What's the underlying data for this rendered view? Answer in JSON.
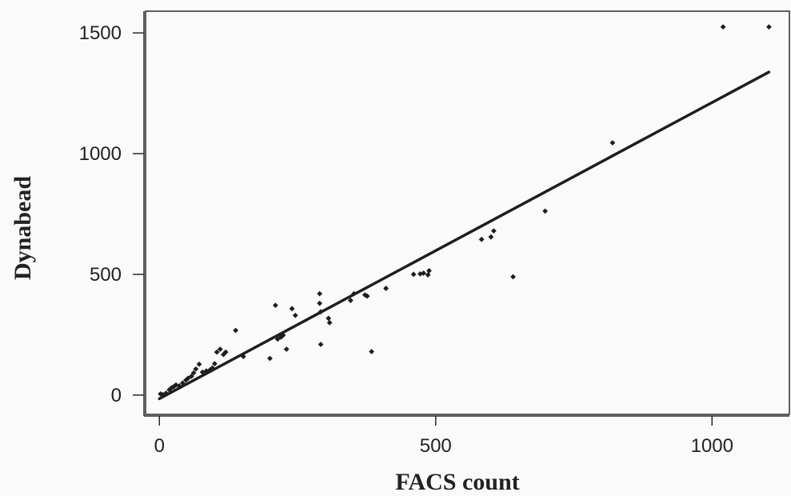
{
  "chart_data": {
    "type": "scatter",
    "xlabel": "FACS count",
    "ylabel": "Dynabead",
    "xlim": [
      -25,
      1140
    ],
    "ylim": [
      -80,
      1590
    ],
    "xticks": [
      0,
      500,
      1000
    ],
    "yticks": [
      0,
      500,
      1000,
      1500
    ],
    "grid": false,
    "legend": "none",
    "colors": {
      "background": "#fafafa",
      "frame": "#2a2a2a",
      "marks": "#1e1e1e"
    },
    "series": [
      {
        "points": [
          [
            2,
            5
          ],
          [
            6,
            2
          ],
          [
            12,
            8
          ],
          [
            18,
            22
          ],
          [
            22,
            30
          ],
          [
            26,
            35
          ],
          [
            30,
            42
          ],
          [
            36,
            38
          ],
          [
            42,
            50
          ],
          [
            48,
            62
          ],
          [
            52,
            70
          ],
          [
            58,
            78
          ],
          [
            62,
            92
          ],
          [
            66,
            108
          ],
          [
            72,
            128
          ],
          [
            78,
            95
          ],
          [
            85,
            100
          ],
          [
            92,
            105
          ],
          [
            96,
            112
          ],
          [
            100,
            130
          ],
          [
            104,
            178
          ],
          [
            110,
            190
          ],
          [
            116,
            168
          ],
          [
            120,
            178
          ],
          [
            138,
            268
          ],
          [
            152,
            160
          ],
          [
            200,
            152
          ],
          [
            210,
            372
          ],
          [
            214,
            232
          ],
          [
            220,
            240
          ],
          [
            224,
            248
          ],
          [
            230,
            190
          ],
          [
            240,
            358
          ],
          [
            246,
            330
          ],
          [
            290,
            420
          ],
          [
            290,
            380
          ],
          [
            292,
            345
          ],
          [
            292,
            210
          ],
          [
            306,
            318
          ],
          [
            308,
            300
          ],
          [
            346,
            392
          ],
          [
            352,
            420
          ],
          [
            372,
            415
          ],
          [
            376,
            410
          ],
          [
            384,
            180
          ],
          [
            410,
            442
          ],
          [
            460,
            500
          ],
          [
            472,
            502
          ],
          [
            478,
            505
          ],
          [
            486,
            498
          ],
          [
            488,
            515
          ],
          [
            583,
            645
          ],
          [
            600,
            655
          ],
          [
            605,
            680
          ],
          [
            640,
            490
          ],
          [
            698,
            762
          ],
          [
            820,
            1045
          ],
          [
            1020,
            1525
          ],
          [
            1103,
            1525
          ]
        ]
      }
    ],
    "fit_line": {
      "x": [
        0,
        1103
      ],
      "y": [
        -15,
        1338
      ]
    }
  }
}
